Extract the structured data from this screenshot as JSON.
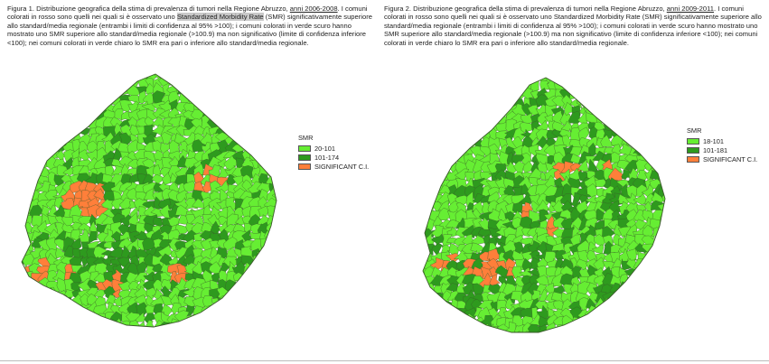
{
  "colors": {
    "light": "#66ee33",
    "dark": "#2e9a1e",
    "orange": "#ff7f3a",
    "border": "#3a5a2a"
  },
  "figure1": {
    "caption_pre": "Figura 1. Distribuzione geografica della stima di prevalenza di tumori nella Regione Abruzzo, ",
    "caption_years": "anni 2006-2008",
    "caption_mid": ". I comuni colorati in rosso sono quelli nei quali si è osservato uno ",
    "caption_hl": "Standardized Morbidity Rate",
    "caption_post": " (SMR) significativamente superiore allo standard/media regionale (entrambi i limiti di confidenza al 95% >100); i comuni colorati in verde scuro hanno mostrato uno SMR superiore allo standard/media regionale (>100.9) ma non significativo (limite di confidenza inferiore <100); nei comuni colorati in verde chiaro lo SMR era pari o inferiore allo standard/media regionale.",
    "legend": {
      "title": "SMR",
      "items": [
        "20-101",
        "101-174",
        "SIGNIFICANT C.I."
      ]
    }
  },
  "figure2": {
    "caption_pre": "Figura 2. Distribuzione geografica della stima di prevalenza di tumori nella Regione Abruzzo, ",
    "caption_years": "anni 2009-2011",
    "caption_post": ". I comuni colorati in rosso sono quelli nei quali si è osservato uno Standardized Morbidity Rate (SMR) significativamente superiore allo standard/media regionale (entrambi i limiti di confidenza al 95% >100); i comuni colorati in verde scuro hanno mostrato uno SMR superiore allo standard/media regionale (>100.9) ma non significativo (limite di confidenza inferiore <100); nei comuni colorati in verde chiaro lo SMR era pari o inferiore allo standard/media regionale.",
    "legend": {
      "title": "SMR",
      "items": [
        "18-101",
        "101-181",
        "SIGNIFICANT C.I."
      ]
    }
  }
}
